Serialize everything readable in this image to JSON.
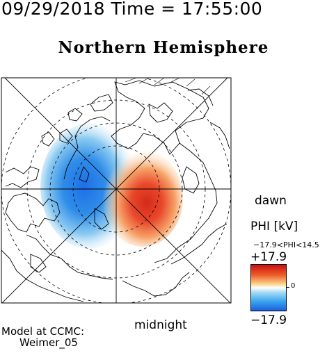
{
  "header": {
    "timestamp": "09/29/2018 Time = 17:55:00",
    "title": "Northern Hemisphere"
  },
  "map": {
    "projection": "polar",
    "labels": {
      "dawn": "dawn",
      "midnight": "midnight"
    },
    "colors": {
      "positive": "#d42a1a",
      "negative": "#1d6fe8",
      "neutral": "#ffffff"
    }
  },
  "colorbar": {
    "label": "PHI [kV]",
    "range_text": "−17.9<PHI<14.5",
    "max_label": "+17.9",
    "min_label": "−17.9",
    "zero_label": "0"
  },
  "footer": {
    "model_line1": "Model at CCMC:",
    "model_line2": "Weimer_05"
  }
}
